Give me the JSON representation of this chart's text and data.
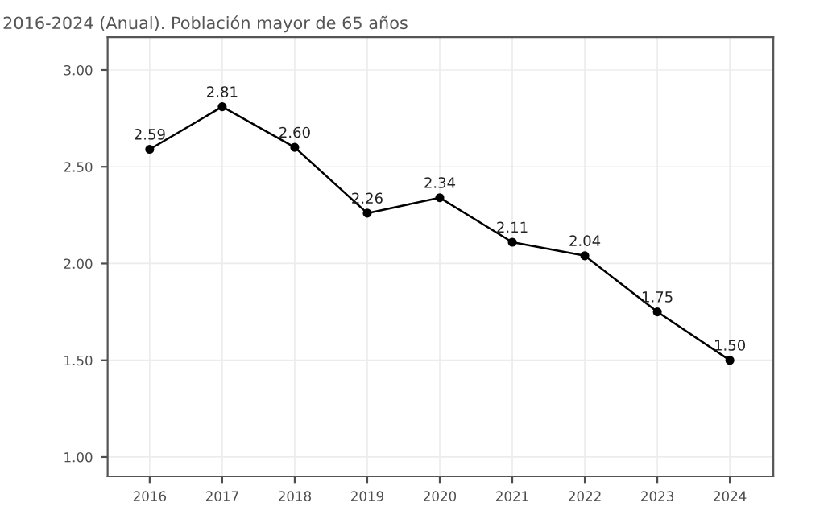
{
  "chart_data": {
    "type": "line",
    "title": "2016-2024 (Anual). Población mayor de 65 años",
    "x": [
      2016,
      2017,
      2018,
      2019,
      2020,
      2021,
      2022,
      2023,
      2024
    ],
    "series": [
      {
        "color": "#000000",
        "values": [
          2.59,
          2.81,
          2.6,
          2.26,
          2.34,
          2.11,
          2.04,
          1.75,
          1.5
        ]
      }
    ],
    "value_labels": [
      "2.59",
      "2.81",
      "2.60",
      "2.26",
      "2.34",
      "2.11",
      "2.04",
      "1.75",
      "1.50"
    ],
    "xlim": [
      2015.42,
      2024.6
    ],
    "xticks": [
      2016,
      2017,
      2018,
      2019,
      2020,
      2021,
      2022,
      2023,
      2024
    ],
    "ylim": [
      0.9,
      3.17
    ],
    "yticks": [
      {
        "value": 1.0,
        "label": "1.00"
      },
      {
        "value": 1.5,
        "label": "1.50"
      },
      {
        "value": 2.0,
        "label": "2.00"
      },
      {
        "value": 2.5,
        "label": "2.50"
      },
      {
        "value": 3.0,
        "label": "3.00"
      }
    ],
    "grid": true,
    "marker": "circle",
    "line_style": "solid",
    "legend": false
  }
}
